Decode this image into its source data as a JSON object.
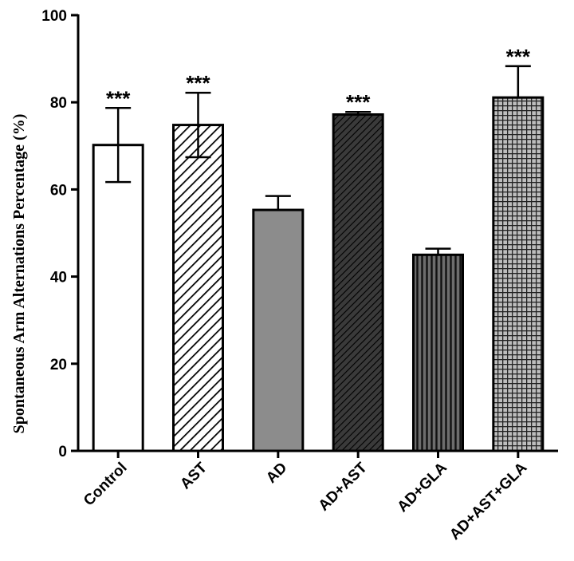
{
  "chart_data": {
    "type": "bar",
    "title": "",
    "xlabel": "",
    "ylabel": "Spontaneous Arm Alternations Percentage (%)",
    "ylim": [
      0,
      100
    ],
    "yticks": [
      "0",
      "20",
      "40",
      "60",
      "80",
      "100"
    ],
    "grid": false,
    "categories": [
      "Control",
      "AST",
      "AD",
      "AD+AST",
      "AD+GLA",
      "AD+AST+GLA"
    ],
    "values": [
      70.2,
      74.8,
      55.3,
      77.2,
      45.0,
      81.1
    ],
    "errors": [
      8.5,
      7.4,
      3.2,
      0.6,
      1.4,
      7.2
    ],
    "significance": [
      "***",
      "***",
      "",
      "***",
      "",
      "***"
    ],
    "fills": [
      "white",
      "diagonal-light",
      "solid-gray",
      "diagonal-dark",
      "vertical-stripes",
      "grid"
    ],
    "colors": {
      "bar_stroke": "#000000",
      "solid_gray": "#8c8c8c",
      "dark_fill": "#3a3a3a"
    }
  }
}
